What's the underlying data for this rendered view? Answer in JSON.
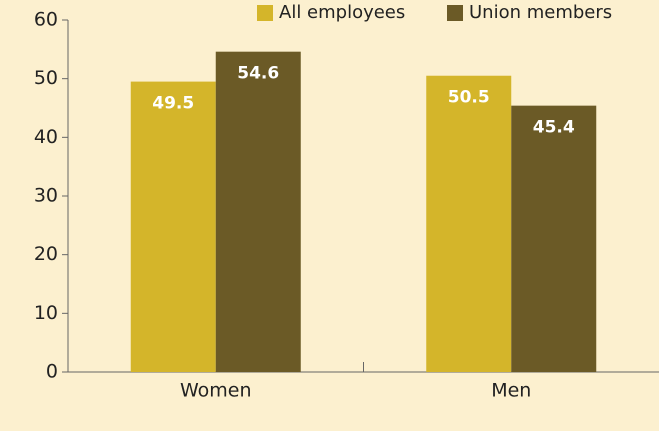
{
  "chart_data": {
    "type": "bar",
    "categories": [
      "Women",
      "Men"
    ],
    "series": [
      {
        "name": "All employees",
        "color": "#d4b52a",
        "values": [
          49.5,
          50.5
        ]
      },
      {
        "name": "Union members",
        "color": "#6b5a26",
        "values": [
          54.6,
          45.4
        ]
      }
    ],
    "ylim": [
      0,
      60
    ],
    "yticks": [
      0,
      10,
      20,
      30,
      40,
      50,
      60
    ],
    "legend": "top",
    "data_labels": true
  }
}
